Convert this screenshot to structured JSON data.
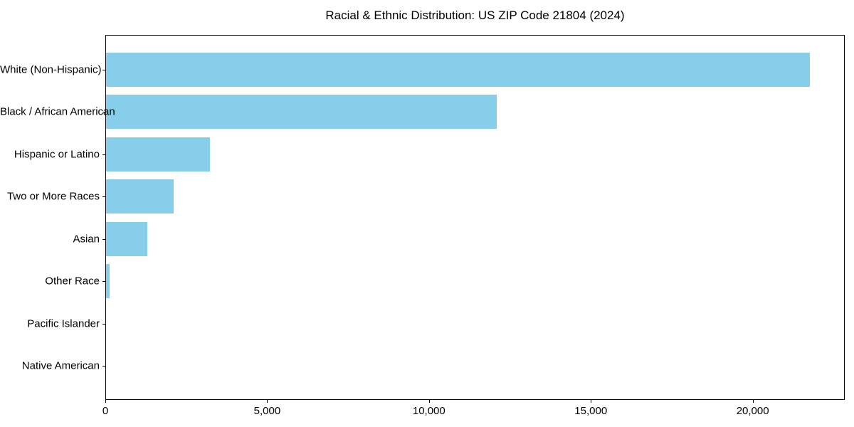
{
  "figure": {
    "background": "#ffffff",
    "text_color": "#000000",
    "frame_color": "#000000"
  },
  "chart_data": {
    "type": "bar",
    "orientation": "horizontal",
    "title": "Racial & Ethnic Distribution: US ZIP Code 21804 (2024)",
    "categories": [
      "White (Non-Hispanic)",
      "Black / African American",
      "Hispanic or Latino",
      "Two or More Races",
      "Asian",
      "Other Race",
      "Pacific Islander",
      "Native American"
    ],
    "values": [
      21740,
      12080,
      3220,
      2085,
      1280,
      105,
      0,
      0
    ],
    "bar_color": "#87CEEB",
    "xlabel": "",
    "ylabel": "",
    "xlim": [
      0,
      22800
    ],
    "xticks": [
      0,
      5000,
      10000,
      15000,
      20000
    ],
    "xtick_labels": [
      "0",
      "5,000",
      "10,000",
      "15,000",
      "20,000"
    ],
    "grid": false,
    "legend_position": "none",
    "largest_category": "White (Non-Hispanic)",
    "smallest_visible_category": "Other Race"
  }
}
